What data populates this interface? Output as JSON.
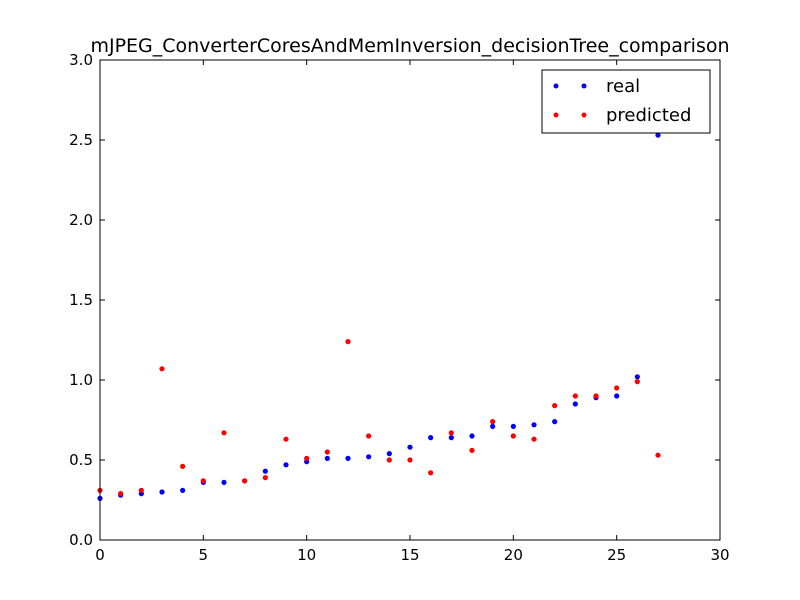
{
  "chart_data": {
    "type": "scatter",
    "title": "mJPEG_ConverterCoresAndMemInversion_decisionTree_comparison",
    "xlabel": "",
    "ylabel": "",
    "xlim": [
      0,
      30
    ],
    "ylim": [
      0.0,
      3.0
    ],
    "xticks": [
      "0",
      "5",
      "10",
      "15",
      "20",
      "25",
      "30"
    ],
    "yticks": [
      "0.0",
      "0.5",
      "1.0",
      "1.5",
      "2.0",
      "2.5",
      "3.0"
    ],
    "grid": false,
    "legend_position": "top-right",
    "x": [
      0,
      1,
      2,
      3,
      4,
      5,
      6,
      7,
      8,
      9,
      10,
      11,
      12,
      13,
      14,
      15,
      16,
      17,
      18,
      19,
      20,
      21,
      22,
      23,
      24,
      25,
      26,
      27
    ],
    "series": [
      {
        "name": "real",
        "color": "#0000ff",
        "values": [
          0.26,
          0.28,
          0.29,
          0.3,
          0.31,
          0.36,
          0.36,
          0.37,
          0.43,
          0.47,
          0.49,
          0.51,
          0.51,
          0.52,
          0.54,
          0.58,
          0.64,
          0.64,
          0.65,
          0.71,
          0.71,
          0.72,
          0.74,
          0.85,
          0.89,
          0.9,
          1.02,
          2.53
        ]
      },
      {
        "name": "predicted",
        "color": "#ff0000",
        "values": [
          0.31,
          0.29,
          0.31,
          1.07,
          0.46,
          0.37,
          0.67,
          0.37,
          0.39,
          0.63,
          0.51,
          0.55,
          1.24,
          0.65,
          0.5,
          0.5,
          0.42,
          0.67,
          0.56,
          0.74,
          0.65,
          0.63,
          0.84,
          0.9,
          0.9,
          0.95,
          0.99,
          0.53
        ]
      }
    ]
  }
}
